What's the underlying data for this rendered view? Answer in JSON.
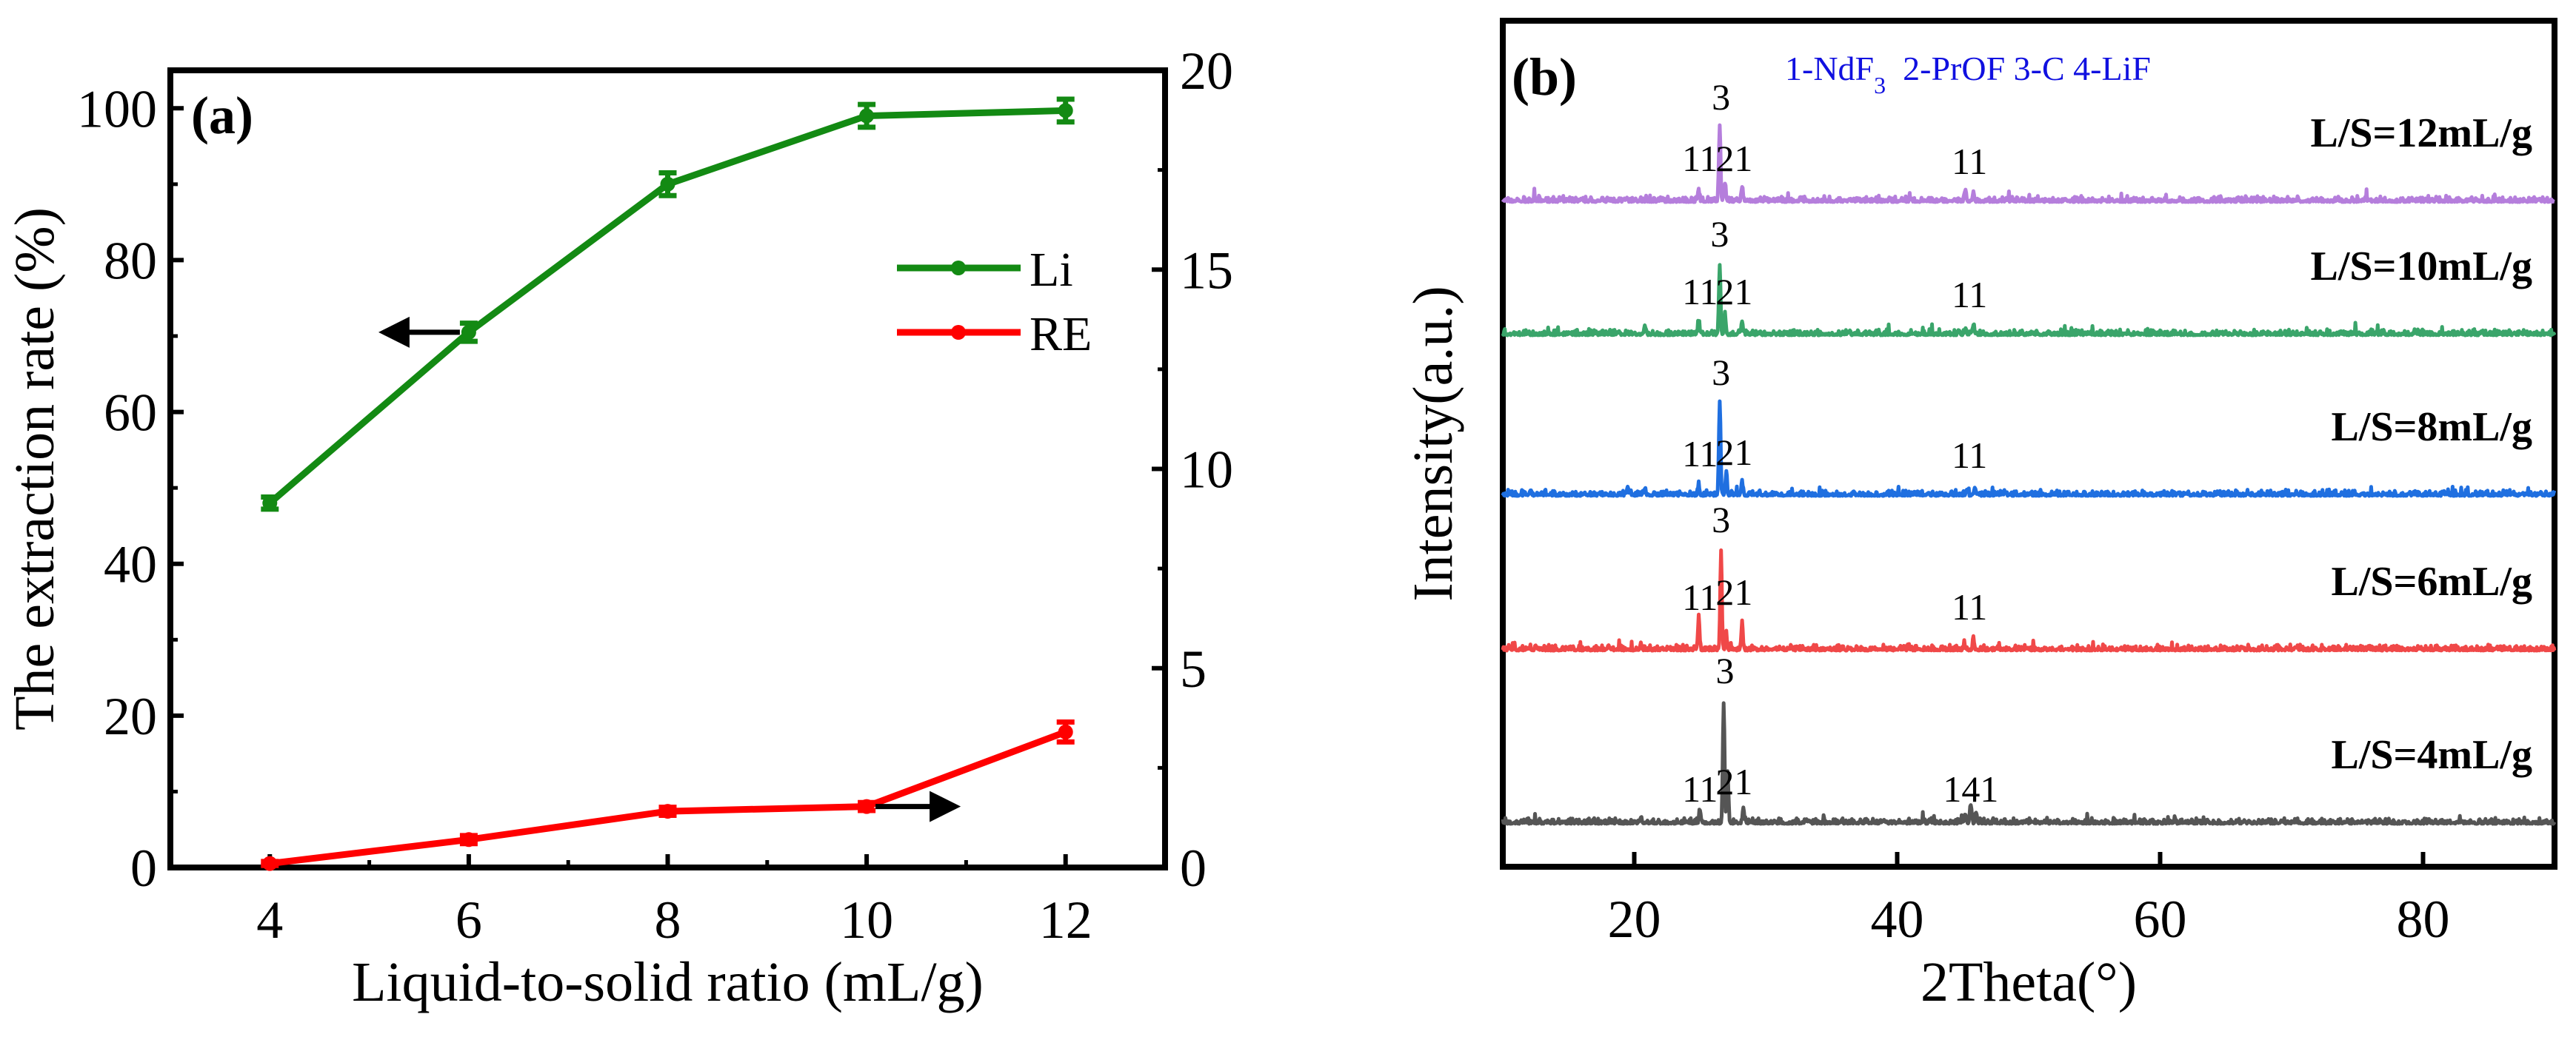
{
  "chart_data": [
    {
      "type": "line",
      "panel_label": "(a)",
      "xlabel": "Liquid-to-solid ratio (mL/g)",
      "ylabel": "The extraction rate (%)",
      "xlim": [
        3,
        13
      ],
      "ylim_left": [
        0,
        105
      ],
      "ylim_right": [
        0,
        20
      ],
      "x_ticks": [
        4,
        6,
        8,
        10,
        12
      ],
      "y_ticks_left": [
        0,
        20,
        40,
        60,
        80,
        100
      ],
      "y_ticks_right": [
        0,
        5,
        10,
        15,
        20
      ],
      "grid": false,
      "legend_position": "center-right",
      "series": [
        {
          "name": "Li",
          "axis": "left",
          "color": "#138a13",
          "x": [
            4,
            6,
            8,
            10,
            12
          ],
          "y": [
            48,
            70.5,
            90,
            99,
            99.7
          ],
          "err": [
            0.8,
            1.2,
            1.5,
            1.5,
            1.5
          ],
          "arrow": "left",
          "arrow_at_x": 6
        },
        {
          "name": "RE",
          "axis": "right",
          "color": "#ff0000",
          "x": [
            4,
            6,
            8,
            10,
            12
          ],
          "y": [
            0.1,
            0.7,
            1.41,
            1.53,
            3.4
          ],
          "err": [
            0.05,
            0.1,
            0.1,
            0.1,
            0.25
          ],
          "arrow": "right",
          "arrow_at_x": 10
        }
      ]
    },
    {
      "type": "line",
      "panel_label": "(b)",
      "xlabel": "2Theta(°)",
      "ylabel": "Intensity(a.u.)",
      "xlim": [
        10,
        90
      ],
      "ylim": [
        0,
        1143
      ],
      "x_ticks": [
        20,
        40,
        60,
        80
      ],
      "phase_legend": {
        "parts": [
          "1-NdF",
          "3",
          "  2-PrOF 3-C 4-LiF"
        ],
        "color": "#1010e0"
      },
      "series": [
        {
          "name": "L/S=12mL/g",
          "color": "#b57edc",
          "offset": 898,
          "peaks": [
            [
              24.9,
              15
            ],
            [
              26.5,
              99
            ],
            [
              26.9,
              25
            ],
            [
              28.2,
              20
            ],
            [
              45.2,
              10
            ],
            [
              45.8,
              12
            ]
          ],
          "labels": [
            [
              "11",
              25.0,
              42
            ],
            [
              "3",
              26.6,
              125
            ],
            [
              "21",
              27.6,
              42
            ],
            [
              "11",
              45.5,
              38
            ]
          ]
        },
        {
          "name": "L/S=10mL/g",
          "color": "#3aa56a",
          "offset": 718,
          "peaks": [
            [
              20.8,
              12
            ],
            [
              24.9,
              18
            ],
            [
              26.5,
              94
            ],
            [
              26.9,
              25
            ],
            [
              28.2,
              18
            ],
            [
              45.2,
              8
            ],
            [
              45.8,
              12
            ]
          ],
          "labels": [
            [
              "11",
              25.0,
              42
            ],
            [
              "3",
              26.5,
              120
            ],
            [
              "21",
              27.6,
              42
            ],
            [
              "11",
              45.5,
              38
            ]
          ]
        },
        {
          "name": "L/S=8mL/g",
          "color": "#1f6fe0",
          "offset": 501,
          "peaks": [
            [
              19.5,
              6
            ],
            [
              20.8,
              8
            ],
            [
              24.9,
              12
            ],
            [
              26.5,
              125
            ],
            [
              27.0,
              30
            ],
            [
              28.2,
              18
            ],
            [
              45.3,
              8
            ],
            [
              45.9,
              10
            ]
          ],
          "labels": [
            [
              "11",
              25.0,
              40
            ],
            [
              "3",
              26.6,
              150
            ],
            [
              "21",
              27.6,
              42
            ],
            [
              "11",
              45.5,
              38
            ]
          ]
        },
        {
          "name": "L/S=6mL/g",
          "color": "#f04848",
          "offset": 292,
          "peaks": [
            [
              20.5,
              5
            ],
            [
              24.9,
              40
            ],
            [
              26.6,
              134
            ],
            [
              27.0,
              20
            ],
            [
              28.2,
              35
            ],
            [
              45.1,
              8
            ],
            [
              45.8,
              15
            ]
          ],
          "labels": [
            [
              "11",
              25.0,
              55
            ],
            [
              "3",
              26.6,
              160
            ],
            [
              "21",
              27.6,
              62
            ],
            [
              "11",
              45.5,
              42
            ]
          ]
        },
        {
          "name": "L/S=4mL/g",
          "color": "#555555",
          "offset": 58,
          "peaks": [
            [
              20.5,
              8
            ],
            [
              25.0,
              18
            ],
            [
              26.8,
              163
            ],
            [
              27.1,
              70
            ],
            [
              28.3,
              18
            ],
            [
              45.2,
              12
            ],
            [
              45.6,
              25
            ],
            [
              46.0,
              12
            ]
          ],
          "labels": [
            [
              "11",
              25.0,
              30
            ],
            [
              "3",
              26.9,
              190
            ],
            [
              "21",
              27.6,
              40
            ],
            [
              "141",
              45.6,
              30
            ]
          ]
        }
      ]
    }
  ]
}
